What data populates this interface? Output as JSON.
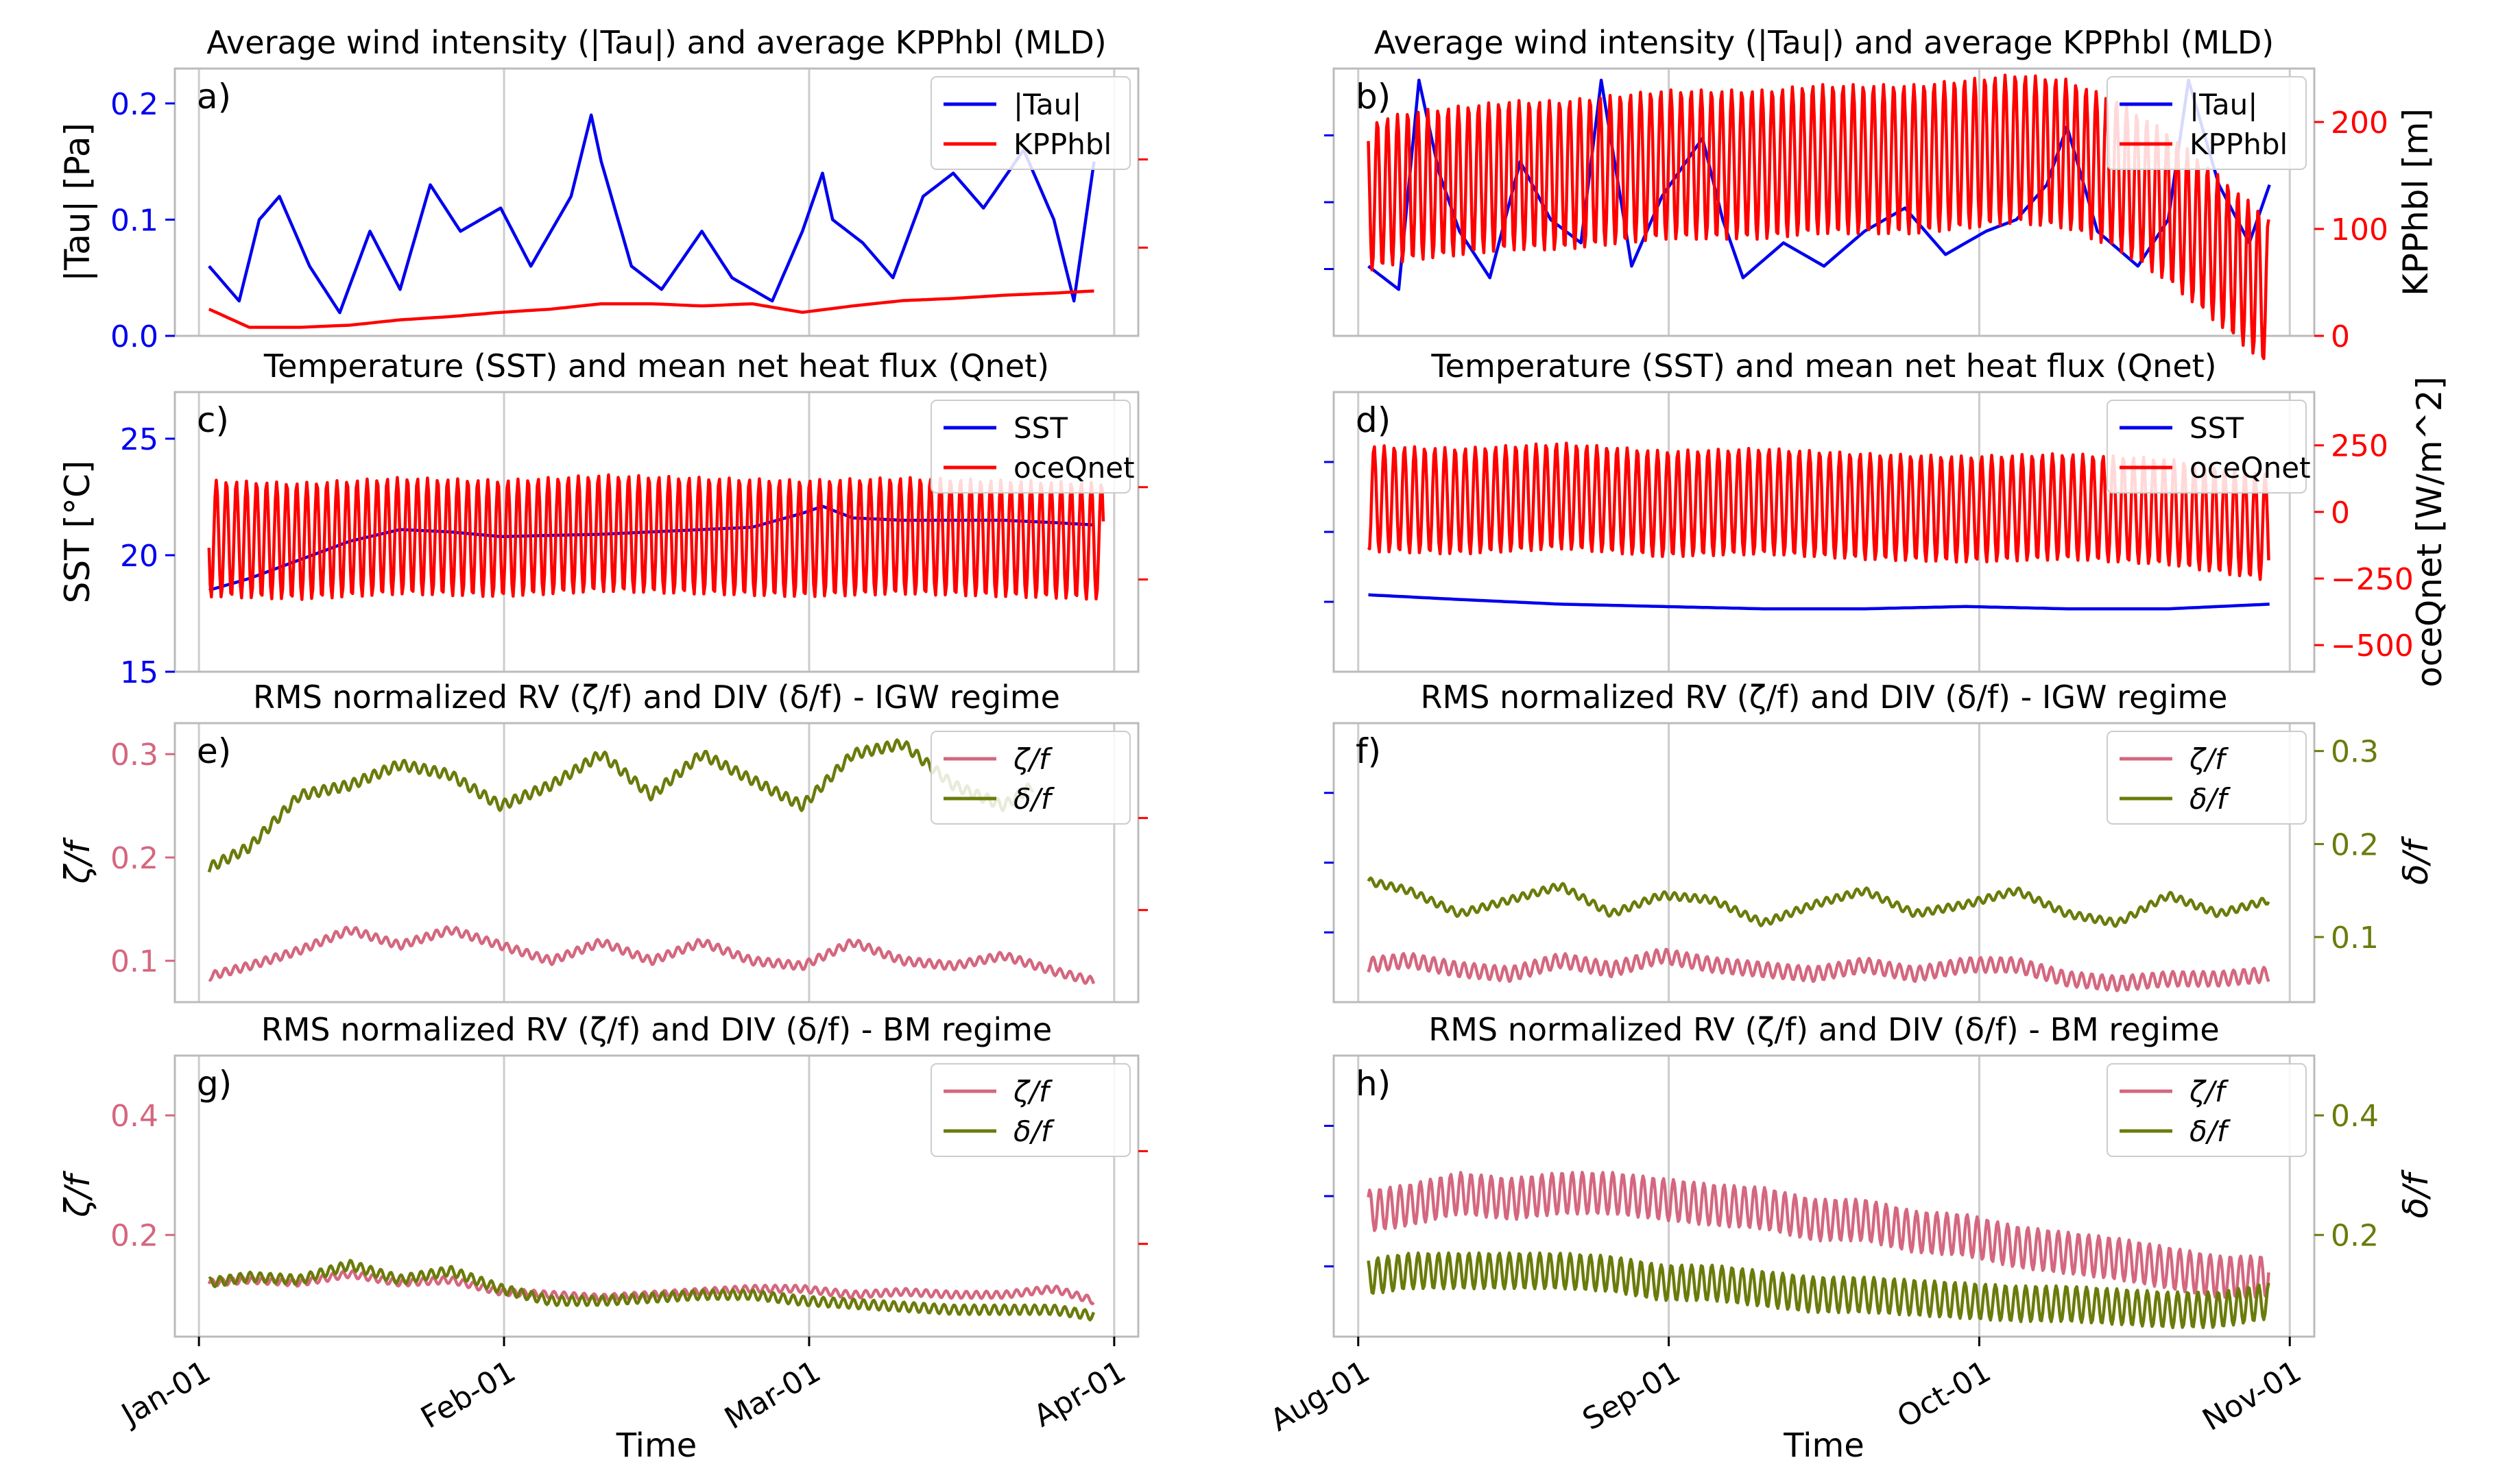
{
  "colors": {
    "tau": "#0000ee",
    "kpp": "#ff0000",
    "sst": "#0000ee",
    "qnet": "#ff0000",
    "zeta": "#d4677f",
    "delta": "#6b7b0b",
    "grid": "#cccccc",
    "axis": "#000000"
  },
  "x_axis": {
    "left": {
      "ticks": [
        "Jan-01",
        "Feb-01",
        "Mar-01",
        "Apr-01"
      ],
      "xlim": [
        0,
        91
      ]
    },
    "right": {
      "ticks": [
        "Aug-01",
        "Sep-01",
        "Oct-01",
        "Nov-01"
      ],
      "xlim": [
        0,
        92
      ]
    },
    "label": "Time"
  },
  "chart_data": [
    {
      "panel": "a",
      "tag": "a)",
      "type": "line",
      "title": "Average wind intensity (|Tau|) and average KPPhbl (MLD)",
      "ylabel": "|Tau| [Pa]",
      "ylim": [
        0,
        0.23
      ],
      "yticks": [
        "0.0",
        "0.1",
        "0.2"
      ],
      "y2lim": [
        0,
        250
      ],
      "legend": [
        "|Tau|",
        "KPPhbl"
      ],
      "series": [
        {
          "name": "|Tau|",
          "axis": "left",
          "x": [
            1,
            4,
            6,
            8,
            11,
            14,
            17,
            20,
            23,
            26,
            30,
            33,
            37,
            39,
            40,
            43,
            46,
            50,
            53,
            57,
            60,
            62,
            63,
            66,
            69,
            72,
            75,
            78,
            82,
            85,
            87,
            89
          ],
          "values": [
            0.06,
            0.03,
            0.1,
            0.12,
            0.06,
            0.02,
            0.09,
            0.04,
            0.13,
            0.09,
            0.11,
            0.06,
            0.12,
            0.19,
            0.15,
            0.06,
            0.04,
            0.09,
            0.05,
            0.03,
            0.09,
            0.14,
            0.1,
            0.08,
            0.05,
            0.12,
            0.14,
            0.11,
            0.16,
            0.1,
            0.03,
            0.15
          ]
        },
        {
          "name": "KPPhbl",
          "axis": "right",
          "x": [
            1,
            5,
            10,
            15,
            20,
            25,
            30,
            35,
            40,
            45,
            50,
            55,
            60,
            65,
            70,
            75,
            80,
            85,
            89
          ],
          "values": [
            25,
            8,
            8,
            10,
            15,
            18,
            22,
            25,
            30,
            30,
            28,
            30,
            22,
            28,
            33,
            35,
            38,
            40,
            42
          ]
        }
      ]
    },
    {
      "panel": "b",
      "tag": "b)",
      "type": "line",
      "title": "Average wind intensity (|Tau|) and average KPPhbl (MLD)",
      "y2label": "KPPhbl [m]",
      "ylim": [
        0,
        0.23
      ],
      "y2lim": [
        0,
        250
      ],
      "y2ticks": [
        "0",
        "100",
        "200"
      ],
      "legend": [
        "|Tau|",
        "KPPhbl"
      ],
      "series": [
        {
          "name": "|Tau|",
          "axis": "left",
          "x": [
            1,
            4,
            6,
            8,
            10,
            13,
            16,
            19,
            22,
            24,
            27,
            30,
            34,
            36,
            38,
            42,
            46,
            50,
            54,
            58,
            62,
            65,
            68,
            70,
            73,
            77,
            80,
            82,
            85,
            88,
            90
          ],
          "values": [
            0.06,
            0.04,
            0.22,
            0.14,
            0.09,
            0.05,
            0.15,
            0.1,
            0.08,
            0.22,
            0.06,
            0.12,
            0.17,
            0.1,
            0.05,
            0.08,
            0.06,
            0.09,
            0.11,
            0.07,
            0.09,
            0.1,
            0.13,
            0.18,
            0.09,
            0.06,
            0.1,
            0.22,
            0.13,
            0.08,
            0.13
          ]
        },
        {
          "name": "KPPhbl",
          "axis": "right",
          "x": [
            1,
            5,
            10,
            15,
            20,
            25,
            30,
            35,
            40,
            45,
            50,
            55,
            60,
            65,
            70,
            75,
            80,
            85,
            90
          ],
          "values": [
            130,
            140,
            145,
            150,
            150,
            155,
            160,
            160,
            160,
            165,
            165,
            165,
            170,
            175,
            170,
            150,
            120,
            80,
            40
          ]
        }
      ]
    },
    {
      "panel": "c",
      "tag": "c)",
      "type": "line",
      "title": "Temperature (SST) and mean net heat flux (Qnet)",
      "ylabel": "SST [°C]",
      "ylim": [
        15,
        27
      ],
      "yticks": [
        "15",
        "20",
        "25"
      ],
      "y2lim": [
        -600,
        450
      ],
      "legend": [
        "SST",
        "oceQnet"
      ],
      "series": [
        {
          "name": "SST",
          "axis": "left",
          "x": [
            1,
            5,
            10,
            15,
            20,
            25,
            30,
            40,
            50,
            55,
            60,
            62,
            65,
            70,
            75,
            80,
            85,
            89
          ],
          "values": [
            18.5,
            19.0,
            19.8,
            20.6,
            21.1,
            21.0,
            20.8,
            20.9,
            21.1,
            21.2,
            21.8,
            22.1,
            21.6,
            21.5,
            21.5,
            21.5,
            21.4,
            21.3
          ]
        },
        {
          "name": "oceQnet",
          "axis": "right",
          "x": [
            1,
            10,
            20,
            30,
            40,
            50,
            60,
            70,
            80,
            90
          ],
          "values": [
            -100,
            -110,
            -90,
            -100,
            -80,
            -90,
            -100,
            -90,
            -100,
            -110
          ]
        }
      ]
    },
    {
      "panel": "d",
      "tag": "d)",
      "type": "line",
      "title": "Temperature (SST) and mean net heat flux (Qnet)",
      "y2label": "oceQnet [W/m^2]",
      "ylim": [
        15,
        27
      ],
      "y2lim": [
        -600,
        450
      ],
      "y2ticks": [
        "−500",
        "−250",
        "0",
        "250"
      ],
      "legend": [
        "SST",
        "oceQnet"
      ],
      "series": [
        {
          "name": "SST",
          "axis": "left",
          "x": [
            1,
            10,
            20,
            30,
            40,
            50,
            60,
            70,
            80,
            90
          ],
          "values": [
            18.3,
            18.1,
            17.9,
            17.8,
            17.7,
            17.7,
            17.8,
            17.7,
            17.7,
            17.9
          ]
        },
        {
          "name": "oceQnet",
          "axis": "right",
          "x": [
            1,
            10,
            20,
            30,
            40,
            50,
            60,
            70,
            80,
            90
          ],
          "values": [
            50,
            40,
            60,
            30,
            40,
            20,
            10,
            20,
            0,
            -60
          ]
        }
      ]
    },
    {
      "panel": "e",
      "tag": "e)",
      "type": "line",
      "title": "RMS normalized RV (ζ/f) and DIV (δ/f) - IGW regime",
      "ylabel": "ζ/f",
      "ylim": [
        0.06,
        0.33
      ],
      "yticks": [
        "0.1",
        "0.2",
        "0.3"
      ],
      "legend": [
        "ζ/f",
        "δ/f"
      ],
      "series": [
        {
          "name": "ζ/f",
          "axis": "left",
          "x": [
            1,
            5,
            10,
            15,
            20,
            25,
            30,
            35,
            40,
            45,
            50,
            55,
            60,
            65,
            70,
            75,
            80,
            85,
            89
          ],
          "values": [
            0.085,
            0.095,
            0.11,
            0.13,
            0.115,
            0.13,
            0.115,
            0.1,
            0.118,
            0.1,
            0.118,
            0.1,
            0.095,
            0.118,
            0.1,
            0.095,
            0.105,
            0.09,
            0.08
          ]
        },
        {
          "name": "δ/f",
          "axis": "left",
          "x": [
            1,
            5,
            10,
            15,
            20,
            25,
            30,
            35,
            40,
            45,
            50,
            55,
            60,
            65,
            70,
            75,
            80,
            83
          ],
          "values": [
            0.19,
            0.21,
            0.26,
            0.27,
            0.29,
            0.28,
            0.25,
            0.27,
            0.3,
            0.26,
            0.3,
            0.275,
            0.25,
            0.3,
            0.31,
            0.27,
            0.25,
            0.27
          ]
        }
      ]
    },
    {
      "panel": "f",
      "tag": "f)",
      "type": "line",
      "title": "RMS normalized RV (ζ/f) and DIV (δ/f) - IGW regime",
      "y2label": "δ/f",
      "ylim": [
        0.06,
        0.33
      ],
      "y2lim": [
        0.03,
        0.33
      ],
      "y2ticks": [
        "0.1",
        "0.2",
        "0.3"
      ],
      "legend": [
        "ζ/f",
        "δ/f"
      ],
      "series": [
        {
          "name": "ζ/f",
          "axis": "right",
          "x": [
            1,
            5,
            10,
            15,
            20,
            25,
            30,
            35,
            40,
            45,
            50,
            55,
            60,
            65,
            70,
            75,
            80,
            85,
            90
          ],
          "values": [
            0.07,
            0.075,
            0.065,
            0.06,
            0.075,
            0.065,
            0.08,
            0.07,
            0.065,
            0.06,
            0.07,
            0.06,
            0.07,
            0.07,
            0.055,
            0.05,
            0.055,
            0.055,
            0.06
          ]
        },
        {
          "name": "δ/f",
          "axis": "right",
          "x": [
            1,
            5,
            10,
            15,
            20,
            25,
            30,
            35,
            40,
            45,
            50,
            55,
            60,
            65,
            70,
            75,
            80,
            85,
            90
          ],
          "values": [
            0.16,
            0.15,
            0.125,
            0.14,
            0.155,
            0.125,
            0.145,
            0.14,
            0.115,
            0.135,
            0.15,
            0.125,
            0.135,
            0.15,
            0.125,
            0.115,
            0.145,
            0.125,
            0.14
          ]
        }
      ]
    },
    {
      "panel": "g",
      "tag": "g)",
      "type": "line",
      "title": "RMS normalized RV (ζ/f) and DIV (δ/f) - BM regime",
      "ylabel": "ζ/f",
      "ylim": [
        0.03,
        0.5
      ],
      "yticks": [
        "0.2",
        "0.4"
      ],
      "legend": [
        "ζ/f",
        "δ/f"
      ],
      "series": [
        {
          "name": "ζ/f",
          "axis": "left",
          "x": [
            1,
            5,
            10,
            15,
            20,
            25,
            30,
            35,
            40,
            45,
            50,
            55,
            60,
            65,
            70,
            75,
            80,
            85,
            89
          ],
          "values": [
            0.12,
            0.125,
            0.12,
            0.135,
            0.12,
            0.125,
            0.105,
            0.1,
            0.095,
            0.1,
            0.105,
            0.11,
            0.11,
            0.1,
            0.105,
            0.1,
            0.1,
            0.11,
            0.09
          ]
        },
        {
          "name": "δ/f",
          "axis": "left",
          "x": [
            1,
            5,
            10,
            15,
            20,
            25,
            30,
            35,
            40,
            45,
            50,
            55,
            60,
            65,
            70,
            75,
            80,
            85,
            89
          ],
          "values": [
            0.12,
            0.13,
            0.125,
            0.15,
            0.125,
            0.14,
            0.11,
            0.09,
            0.09,
            0.095,
            0.1,
            0.1,
            0.09,
            0.085,
            0.08,
            0.075,
            0.075,
            0.075,
            0.065
          ]
        }
      ]
    },
    {
      "panel": "h",
      "tag": "h)",
      "type": "line",
      "title": "RMS normalized RV (ζ/f) and DIV (δ/f) - BM regime",
      "y2label": "δ/f",
      "ylim": [
        0.03,
        0.5
      ],
      "y2lim": [
        0.03,
        0.5
      ],
      "y2ticks": [
        "0.2",
        "0.4"
      ],
      "legend": [
        "ζ/f",
        "δ/f"
      ],
      "series": [
        {
          "name": "ζ/f",
          "axis": "right",
          "x": [
            1,
            5,
            10,
            15,
            20,
            25,
            30,
            35,
            40,
            45,
            50,
            55,
            60,
            65,
            70,
            75,
            80,
            85,
            90
          ],
          "values": [
            0.24,
            0.25,
            0.27,
            0.26,
            0.27,
            0.27,
            0.26,
            0.25,
            0.245,
            0.225,
            0.225,
            0.205,
            0.2,
            0.18,
            0.17,
            0.16,
            0.145,
            0.13,
            0.13
          ]
        },
        {
          "name": "δ/f",
          "axis": "right",
          "x": [
            1,
            5,
            10,
            15,
            20,
            25,
            30,
            35,
            40,
            45,
            50,
            55,
            60,
            65,
            70,
            75,
            80,
            85,
            90
          ],
          "values": [
            0.13,
            0.14,
            0.14,
            0.14,
            0.14,
            0.135,
            0.12,
            0.12,
            0.11,
            0.1,
            0.1,
            0.095,
            0.09,
            0.085,
            0.085,
            0.08,
            0.075,
            0.075,
            0.09
          ]
        }
      ]
    }
  ]
}
